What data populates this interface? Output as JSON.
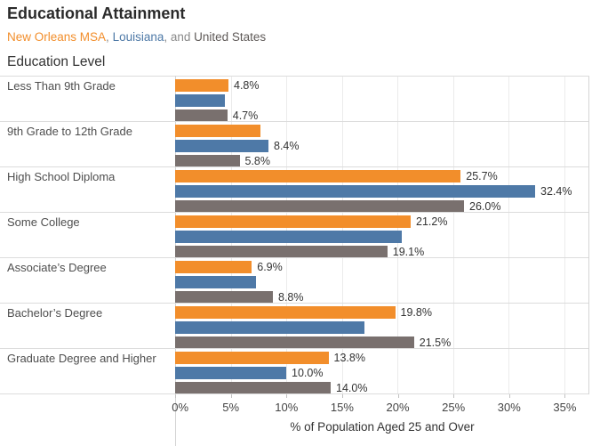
{
  "title": "Educational Attainment",
  "subtitle": {
    "parts": [
      {
        "text": "New Orleans MSA",
        "color": "#f28e2b"
      },
      {
        "text": ", ",
        "color": "#8a8a8a"
      },
      {
        "text": "Louisiana",
        "color": "#4e79a7"
      },
      {
        "text": ", and ",
        "color": "#8a8a8a"
      },
      {
        "text": "United States",
        "color": "#5f5a58"
      }
    ]
  },
  "row_header": "Education Level",
  "chart_data": {
    "type": "bar",
    "orientation": "horizontal",
    "grid": true,
    "categories": [
      "Less Than 9th Grade",
      "9th Grade to 12th Grade",
      "High School Diploma",
      "Some College",
      "Associate’s Degree",
      "Bachelor’s Degree",
      "Graduate Degree and Higher"
    ],
    "series": [
      {
        "name": "New Orleans MSA",
        "id": "new-orleans-msa",
        "color": "#f28e2b",
        "values": [
          4.8,
          7.7,
          25.7,
          21.2,
          6.9,
          19.8,
          13.8
        ],
        "labels": [
          "4.8%",
          "",
          "25.7%",
          "21.2%",
          "6.9%",
          "19.8%",
          "13.8%"
        ]
      },
      {
        "name": "Louisiana",
        "id": "louisiana",
        "color": "#4e79a7",
        "values": [
          4.5,
          8.4,
          32.4,
          20.4,
          7.3,
          17.0,
          10.0
        ],
        "labels": [
          "",
          "8.4%",
          "32.4%",
          "",
          "",
          "",
          "10.0%"
        ]
      },
      {
        "name": "United States",
        "id": "united-states",
        "color": "#79706e",
        "values": [
          4.7,
          5.8,
          26.0,
          19.1,
          8.8,
          21.5,
          14.0
        ],
        "labels": [
          "4.7%",
          "5.8%",
          "26.0%",
          "19.1%",
          "8.8%",
          "21.5%",
          "14.0%"
        ]
      }
    ],
    "xlabel": "% of Population Aged 25 and Over",
    "x_ticks": [
      {
        "value": 0,
        "label": "0%"
      },
      {
        "value": 5,
        "label": "5%"
      },
      {
        "value": 10,
        "label": "10%"
      },
      {
        "value": 15,
        "label": "15%"
      },
      {
        "value": 20,
        "label": "20%"
      },
      {
        "value": 25,
        "label": "25%"
      },
      {
        "value": 30,
        "label": "30%"
      },
      {
        "value": 35,
        "label": "35%"
      }
    ],
    "xlim": [
      0,
      37.2
    ]
  }
}
